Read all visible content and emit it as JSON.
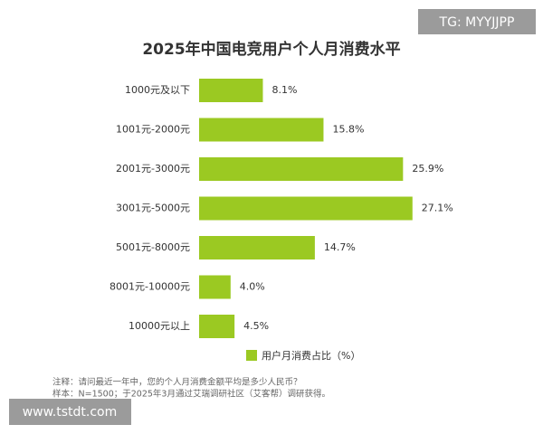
{
  "chart_data": {
    "type": "bar",
    "orientation": "horizontal",
    "title": "2025年中国电竞用户个人月消费水平",
    "categories": [
      "1000元及以下",
      "1001元-2000元",
      "2001元-3000元",
      "3001元-5000元",
      "5001元-8000元",
      "8001元-10000元",
      "10000元以上"
    ],
    "series": [
      {
        "name": "用户月消费占比（%）",
        "color": "#9bc922",
        "values": [
          8.1,
          15.8,
          25.9,
          27.1,
          14.7,
          4.0,
          4.5
        ],
        "value_labels": [
          "8.1%",
          "15.8%",
          "25.9%",
          "27.1%",
          "14.7%",
          "4.0%",
          "4.5%"
        ]
      }
    ],
    "notes": [
      "注释：请问最近一年中，您的个人月消费金额平均是多少人民币？",
      "样本：N=1500；于2025年3月通过艾瑞调研社区（艾客帮）调研获得。"
    ]
  },
  "watermarks": [
    "TG: MYYJJPP",
    "www.tstdt.com"
  ]
}
